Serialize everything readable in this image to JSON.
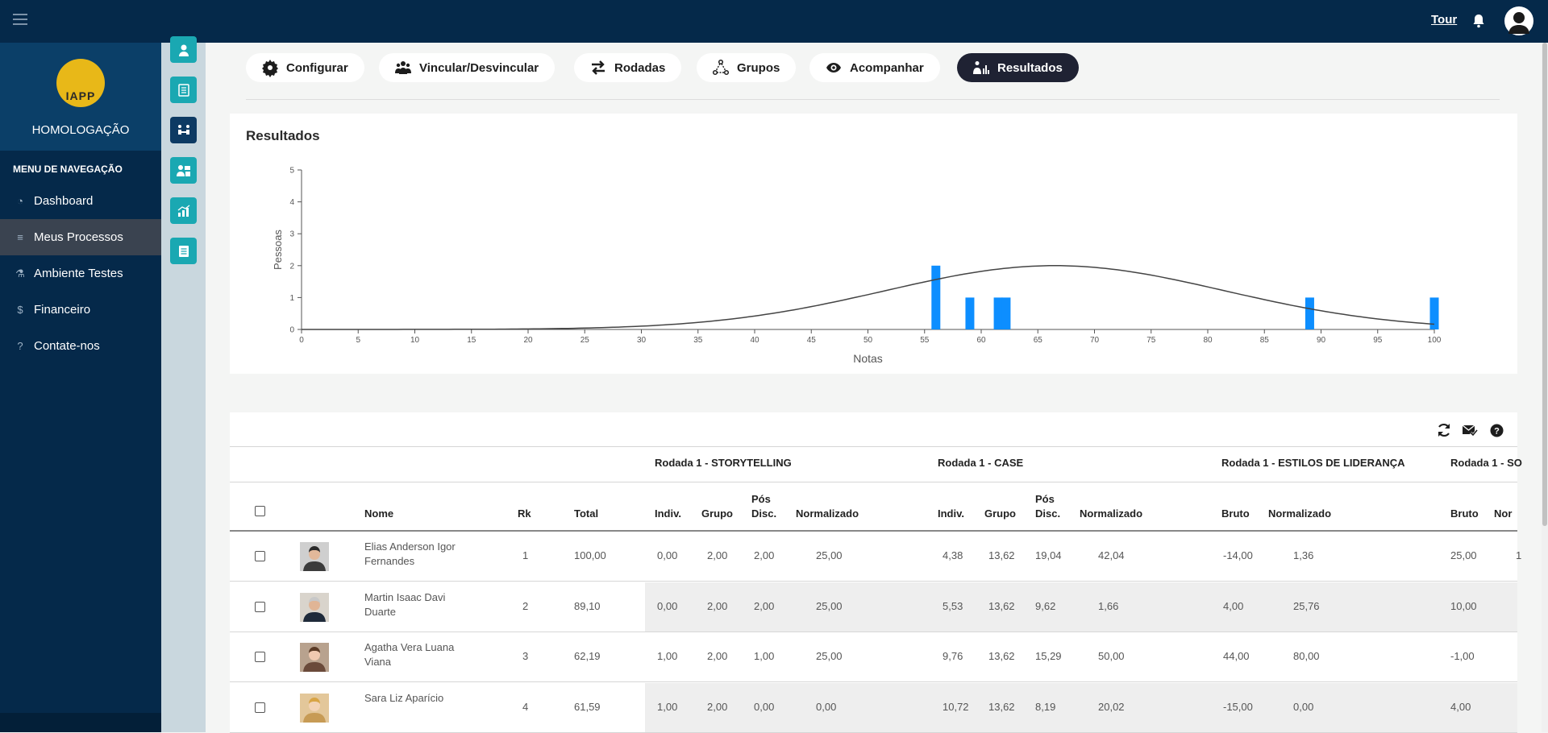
{
  "topbar": {
    "tour_label": "Tour"
  },
  "brand": {
    "logo_text": "IAPP",
    "env_name": "HOMOLOGAÇÃO"
  },
  "nav": {
    "heading": "MENU DE NAVEGAÇÃO",
    "items": [
      {
        "label": "Dashboard",
        "icon": "dashboard-icon"
      },
      {
        "label": "Meus Processos",
        "icon": "process-icon",
        "active": true
      },
      {
        "label": "Ambiente Testes",
        "icon": "flask-icon"
      },
      {
        "label": "Financeiro",
        "icon": "dollar-icon"
      },
      {
        "label": "Contate-nos",
        "icon": "help-icon"
      }
    ]
  },
  "tabs": [
    {
      "label": "Configurar",
      "icon": "gear-icon"
    },
    {
      "label": "Vincular/Desvincular",
      "icon": "users-icon"
    },
    {
      "label": "Rodadas",
      "icon": "exchange-icon"
    },
    {
      "label": "Grupos",
      "icon": "hierarchy-icon"
    },
    {
      "label": "Acompanhar",
      "icon": "eye-icon"
    },
    {
      "label": "Resultados",
      "icon": "results-icon",
      "active": true
    }
  ],
  "results": {
    "title": "Resultados",
    "chart_data": {
      "type": "bar",
      "xlabel": "Notas",
      "ylabel": "Pessoas",
      "xlim": [
        0,
        100
      ],
      "ylim": [
        0,
        5
      ],
      "x_ticks": [
        0,
        5,
        10,
        15,
        20,
        25,
        30,
        35,
        40,
        45,
        50,
        55,
        60,
        65,
        70,
        75,
        80,
        85,
        90,
        95,
        100
      ],
      "y_ticks": [
        0,
        1,
        2,
        3,
        4,
        5
      ],
      "bars": [
        {
          "x": 56,
          "y": 2
        },
        {
          "x": 59,
          "y": 1
        },
        {
          "x": 61.5,
          "y": 1
        },
        {
          "x": 62.2,
          "y": 1
        },
        {
          "x": 89,
          "y": 1
        },
        {
          "x": 100,
          "y": 1
        }
      ],
      "curve": {
        "type": "normal",
        "peak_x": 66.5,
        "peak_y": 2.0,
        "sd": 15
      },
      "bar_color": "#0d8eff",
      "curve_color": "#444444"
    }
  },
  "table": {
    "tool_icons": [
      "refresh-icon",
      "mail-check-icon",
      "help-icon"
    ],
    "groups": [
      "Rodada 1 - STORYTELLING",
      "Rodada 1 - CASE",
      "Rodada 1 - ESTILOS DE LIDERANÇA",
      "Rodada 1 - SO"
    ],
    "headers": {
      "nome": "Nome",
      "rk": "Rk",
      "total": "Total",
      "indiv": "Indiv.",
      "grupo": "Grupo",
      "pos1": "Pós",
      "pos2": "Disc.",
      "normalizado": "Normalizado",
      "bruto": "Bruto",
      "nor_trunc": "Nor"
    },
    "rows": [
      {
        "name1": "Elias Anderson Igor",
        "name2": "Fernandes",
        "rk": "1",
        "total": "100,00",
        "s_indiv": "0,00",
        "s_grupo": "2,00",
        "s_pos": "2,00",
        "s_norm": "25,00",
        "c_indiv": "4,38",
        "c_grupo": "13,62",
        "c_pos": "19,04",
        "c_norm": "42,04",
        "e_bruto": "-14,00",
        "e_norm": "1,36",
        "so_bruto": "25,00",
        "so_norm": "1"
      },
      {
        "name1": "Martin Isaac Davi",
        "name2": "Duarte",
        "rk": "2",
        "total": "89,10",
        "s_indiv": "0,00",
        "s_grupo": "2,00",
        "s_pos": "2,00",
        "s_norm": "25,00",
        "c_indiv": "5,53",
        "c_grupo": "13,62",
        "c_pos": "9,62",
        "c_norm": "1,66",
        "e_bruto": "4,00",
        "e_norm": "25,76",
        "so_bruto": "10,00",
        "so_norm": ""
      },
      {
        "name1": "Agatha Vera Luana",
        "name2": "Viana",
        "rk": "3",
        "total": "62,19",
        "s_indiv": "1,00",
        "s_grupo": "2,00",
        "s_pos": "1,00",
        "s_norm": "25,00",
        "c_indiv": "9,76",
        "c_grupo": "13,62",
        "c_pos": "15,29",
        "c_norm": "50,00",
        "e_bruto": "44,00",
        "e_norm": "80,00",
        "so_bruto": "-1,00",
        "so_norm": ""
      },
      {
        "name1": "Sara Liz Aparício",
        "name2": "",
        "rk": "4",
        "total": "61,59",
        "s_indiv": "1,00",
        "s_grupo": "2,00",
        "s_pos": "0,00",
        "s_norm": "0,00",
        "c_indiv": "10,72",
        "c_grupo": "13,62",
        "c_pos": "8,19",
        "c_norm": "20,02",
        "e_bruto": "-15,00",
        "e_norm": "0,00",
        "so_bruto": "4,00",
        "so_norm": ""
      }
    ]
  }
}
